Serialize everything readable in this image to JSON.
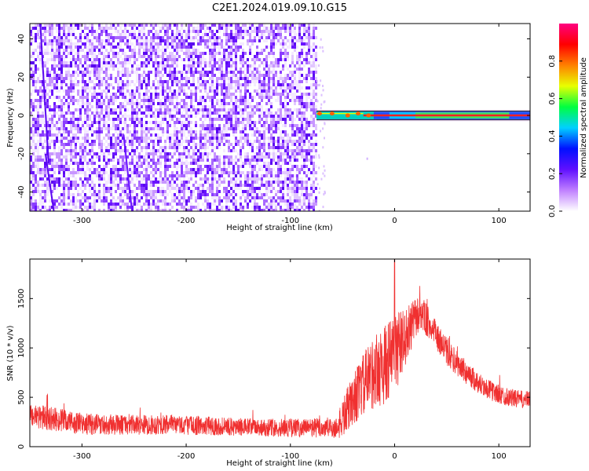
{
  "title": "C2E1.2024.019.09.10.G15",
  "chart_data": [
    {
      "type": "heatmap",
      "xlabel": "Height of straight line (km)",
      "ylabel": "Frequency (Hz)",
      "xlim": [
        -350,
        130
      ],
      "ylim": [
        -50,
        48
      ],
      "xticks": [
        -300,
        -200,
        -100,
        0,
        100
      ],
      "yticks": [
        -40,
        -20,
        0,
        20,
        40
      ],
      "noise_region_x": [
        -350,
        -75
      ],
      "signal_band": {
        "x_start": -75,
        "x_end": 130,
        "frequency": 0,
        "half_width": 2
      },
      "colorbar": {
        "label": "Normalized spectral amplitude",
        "range": [
          0.0,
          1.0
        ],
        "ticks": [
          0.0,
          0.2,
          0.4,
          0.6,
          0.8
        ],
        "colors": [
          "#ffffff",
          "#c080ff",
          "#6010ff",
          "#0010ff",
          "#00d0ff",
          "#00ff40",
          "#e8ff00",
          "#ff8000",
          "#ff0000",
          "#ff0080"
        ]
      }
    },
    {
      "type": "line",
      "xlabel": "Height of straight line (km)",
      "ylabel": "SNR (10 * v/v)",
      "xlim": [
        -350,
        130
      ],
      "ylim": [
        0,
        1900
      ],
      "xticks": [
        -300,
        -200,
        -100,
        0,
        100
      ],
      "yticks": [
        0,
        500,
        1000,
        1500
      ],
      "color": "#f03030",
      "envelope": {
        "x": [
          -350,
          -300,
          -250,
          -200,
          -150,
          -100,
          -55,
          -50,
          -40,
          -30,
          -20,
          -10,
          0,
          10,
          20,
          25,
          30,
          40,
          50,
          60,
          70,
          80,
          90,
          100,
          110,
          120,
          130
        ],
        "mean": [
          320,
          230,
          220,
          220,
          200,
          190,
          190,
          280,
          480,
          620,
          760,
          820,
          950,
          1100,
          1300,
          1360,
          1290,
          1120,
          960,
          840,
          740,
          650,
          580,
          530,
          500,
          480,
          470
        ],
        "spread": [
          130,
          110,
          100,
          100,
          90,
          95,
          110,
          200,
          260,
          320,
          380,
          400,
          420,
          300,
          200,
          180,
          170,
          150,
          140,
          130,
          120,
          110,
          100,
          100,
          90,
          90,
          90
        ]
      },
      "peak": {
        "x": 0,
        "y": 1900
      }
    }
  ]
}
